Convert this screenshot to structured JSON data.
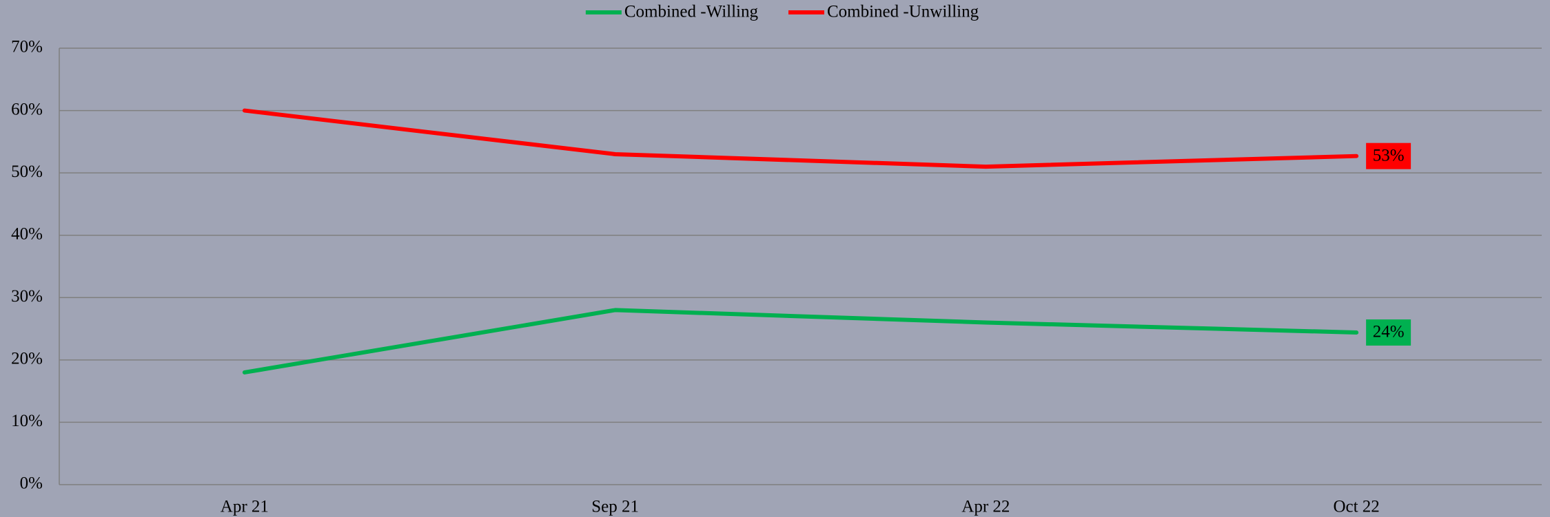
{
  "chart_data": {
    "type": "line",
    "categories": [
      "Apr 21",
      "Sep 21",
      "Apr 22",
      "Oct 22"
    ],
    "series": [
      {
        "name": "Combined -Willing",
        "color": "#00b050",
        "values": [
          18,
          28,
          26,
          24.4
        ],
        "value_labels": [
          null,
          null,
          null,
          "24%"
        ]
      },
      {
        "name": "Combined -Unwilling",
        "color": "#ff0000",
        "values": [
          60,
          53,
          51,
          52.7
        ],
        "value_labels": [
          null,
          null,
          null,
          "53%"
        ]
      }
    ],
    "ylim": [
      0,
      70
    ],
    "yticks": [
      {
        "value": 0,
        "label": "0%"
      },
      {
        "value": 10,
        "label": "10%"
      },
      {
        "value": 20,
        "label": "20%"
      },
      {
        "value": 30,
        "label": "30%"
      },
      {
        "value": 40,
        "label": "40%"
      },
      {
        "value": 50,
        "label": "50%"
      },
      {
        "value": 60,
        "label": "60%"
      },
      {
        "value": 70,
        "label": "70%"
      }
    ],
    "grid": true,
    "legend": "top"
  }
}
